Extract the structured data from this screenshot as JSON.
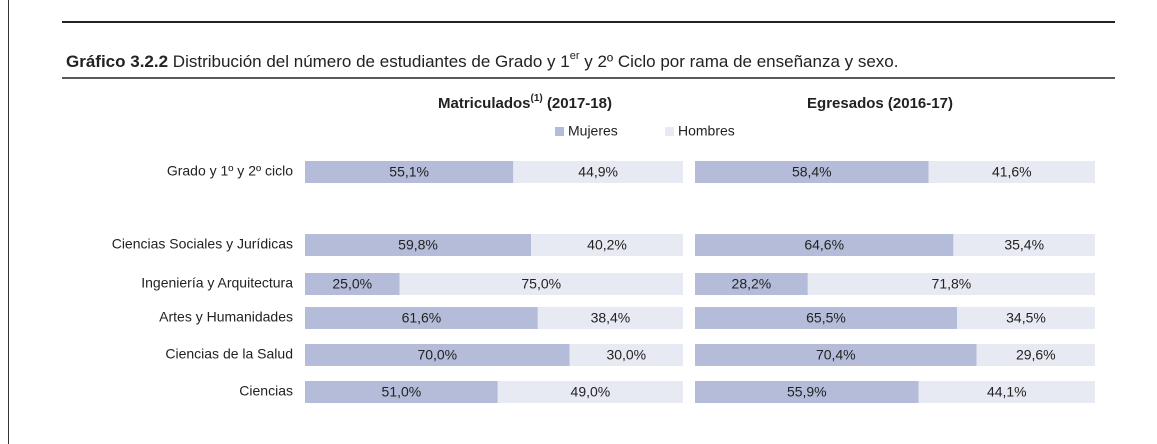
{
  "chart_data": {
    "type": "stacked-bar-horizontal",
    "title_label": "Gráfico 3.2.2",
    "title_text": "Distribución del número de estudiantes de Grado y 1",
    "title_sup": "er",
    "title_rest": "y 2º Ciclo por rama de enseñanza y sexo.",
    "categories": [
      "Grado y 1º y 2º ciclo",
      "Ciencias Sociales y Jurídicas",
      "Ingeniería y Arquitectura",
      "Artes y Humanidades",
      "Ciencias de la Salud",
      "Ciencias"
    ],
    "legend": [
      {
        "name": "Mujeres",
        "color": "#b4bcda"
      },
      {
        "name": "Hombres",
        "color": "#e7eaf3"
      }
    ],
    "xlim": [
      0,
      100
    ],
    "panels": [
      {
        "title": "Matriculados",
        "title_sup": "(1)",
        "title_rest": "(2017-18)",
        "series": [
          {
            "values": [
              55.1,
              59.8,
              25.0,
              61.6,
              70.0,
              51.0
            ],
            "value_labels": [
              "55,1%",
              "59,8%",
              "25,0%",
              "61,6%",
              "70,0%",
              "51,0%"
            ]
          },
          {
            "values": [
              44.9,
              40.2,
              75.0,
              38.4,
              30.0,
              49.0
            ],
            "value_labels": [
              "44,9%",
              "40,2%",
              "75,0%",
              "38,4%",
              "30,0%",
              "49,0%"
            ]
          }
        ]
      },
      {
        "title": "Egresados (2016-17)",
        "series": [
          {
            "values": [
              58.4,
              64.6,
              28.2,
              65.5,
              70.4,
              55.9
            ],
            "value_labels": [
              "58,4%",
              "64,6%",
              "28,2%",
              "65,5%",
              "70,4%",
              "55,9%"
            ]
          },
          {
            "values": [
              41.6,
              35.4,
              71.8,
              34.5,
              29.6,
              44.1
            ],
            "value_labels": [
              "41,6%",
              "35,4%",
              "71,8%",
              "34,5%",
              "29,6%",
              "44,1%"
            ]
          }
        ]
      }
    ]
  }
}
